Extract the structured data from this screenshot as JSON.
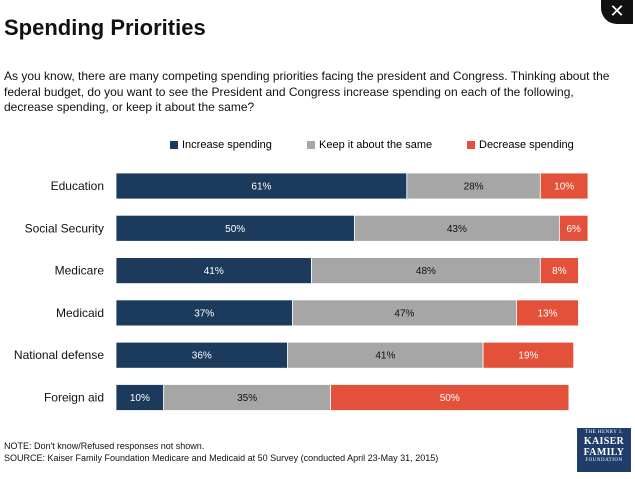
{
  "close_button": {
    "label": "✕"
  },
  "header": {
    "title": "Spending Priorities",
    "question": "As you know, there are many competing spending priorities facing the president and Congress.  Thinking about the federal budget, do you want to see the President and Congress increase spending on each of the following, decrease spending, or keep it about the same?"
  },
  "chart_data": {
    "type": "bar",
    "orientation": "horizontal",
    "stacked": true,
    "unit": "%",
    "categories": [
      "Education",
      "Social Security",
      "Medicare",
      "Medicaid",
      "National defense",
      "Foreign aid"
    ],
    "series": [
      {
        "name": "Increase spending",
        "color": "#1b3a5c",
        "label_color": "#ffffff",
        "values": [
          61,
          50,
          41,
          37,
          36,
          10
        ]
      },
      {
        "name": "Keep it about the same",
        "color": "#a6a6a6",
        "label_color": "#111111",
        "values": [
          28,
          43,
          48,
          47,
          41,
          35
        ]
      },
      {
        "name": "Decrease spending",
        "color": "#e4513b",
        "label_color": "#ffffff",
        "values": [
          10,
          6,
          8,
          13,
          19,
          50
        ]
      }
    ],
    "legend_position": "top-center",
    "xlim": [
      0,
      99
    ]
  },
  "footer": {
    "note": "NOTE: Don't know/Refused responses not shown.",
    "source": "SOURCE: Kaiser Family Foundation Medicare and Medicaid at 50 Survey (conducted April 23-May 31, 2015)"
  },
  "logo": {
    "line1": "THE HENRY J.",
    "line2": "KAISER",
    "line3": "FAMILY",
    "line4": "FOUNDATION"
  }
}
